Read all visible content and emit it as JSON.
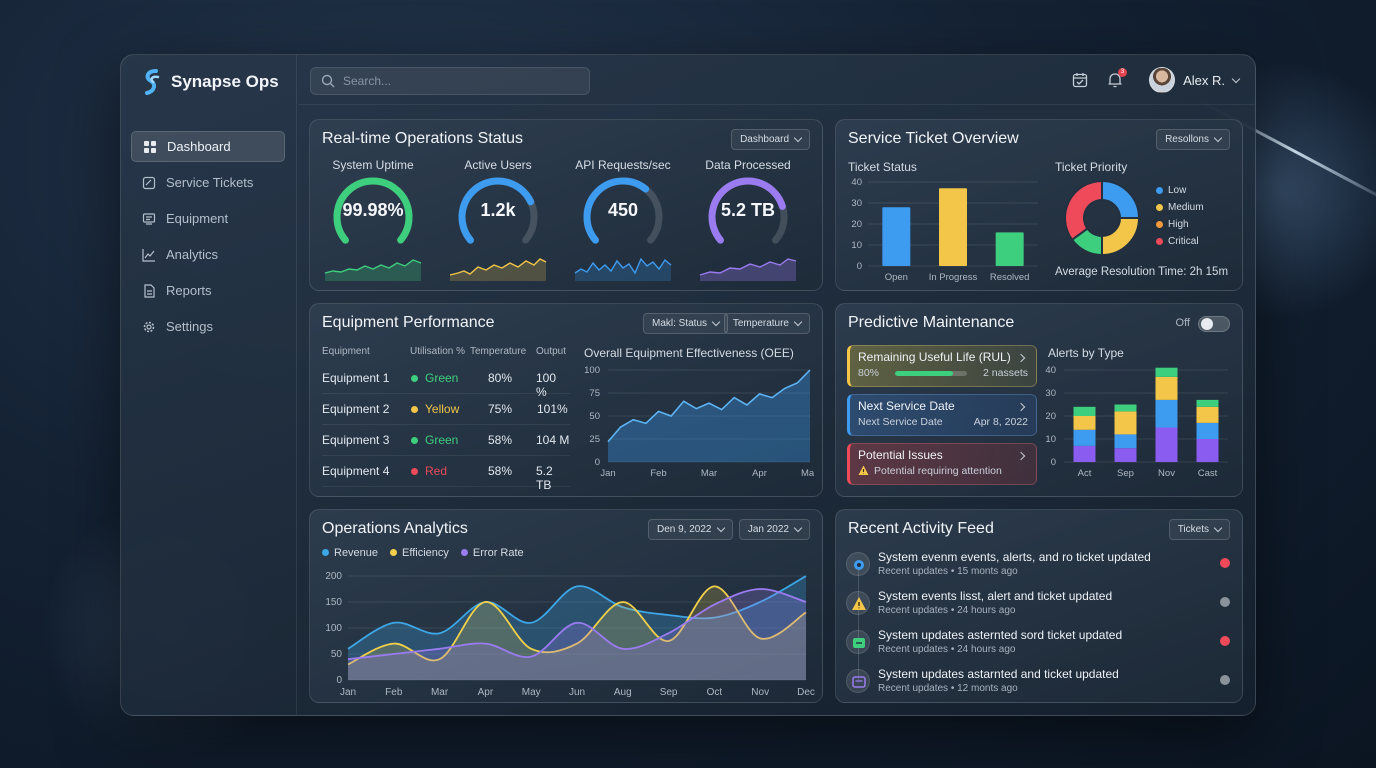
{
  "app": {
    "title": "Synapse Ops"
  },
  "search": {
    "placeholder": "Search..."
  },
  "topbar": {
    "notification_count": "3",
    "user_name": "Alex R."
  },
  "sidebar": {
    "items": [
      {
        "label": "Dashboard",
        "icon": "dashboard-icon",
        "active": true
      },
      {
        "label": "Service Tickets",
        "icon": "ticket-icon"
      },
      {
        "label": "Equipment",
        "icon": "equipment-icon"
      },
      {
        "label": "Analytics",
        "icon": "analytics-icon"
      },
      {
        "label": "Reports",
        "icon": "reports-icon"
      },
      {
        "label": "Settings",
        "icon": "gear-icon"
      }
    ]
  },
  "realtime": {
    "title": "Real-time Operations Status",
    "dropdown": "Dashboard",
    "gauges": [
      {
        "label": "System Uptime",
        "value": "99.98%",
        "color": "#3ecf7e",
        "fill": 0.9998
      },
      {
        "label": "Active Users",
        "value": "1.2k",
        "color": "#3d9bf0",
        "fill": 0.75
      },
      {
        "label": "API Requests/sec",
        "value": "450",
        "color": "#3d9bf0",
        "fill": 0.65
      },
      {
        "label": "Data Processed",
        "value": "5.2 TB",
        "color": "#9a7bf0",
        "fill": 0.78
      }
    ]
  },
  "tickets": {
    "title": "Service Ticket Overview",
    "dropdown": "Resollons",
    "status_title": "Ticket Status",
    "priority_title": "Ticket Priority",
    "resolution": "Average Resolution Time: 2h 15m",
    "priority_legend": [
      {
        "label": "Low",
        "color": "#3d9bf0"
      },
      {
        "label": "Medium",
        "color": "#f3c548"
      },
      {
        "label": "High",
        "color": "#f39a3a"
      },
      {
        "label": "Critical",
        "color": "#ee4a5a"
      }
    ]
  },
  "equipment": {
    "title": "Equipment Performance",
    "dropdown1": "Makl: Status",
    "dropdown2": "Temperature",
    "columns": [
      "Equipment",
      "Utilisation %",
      "Temperature",
      "Output"
    ],
    "rows": [
      {
        "name": "Equipment 1",
        "status": "Green",
        "status_color": "#3ecf7e",
        "temp": "80%",
        "output": "100 %"
      },
      {
        "name": "Equipment 2",
        "status": "Yellow",
        "status_color": "#f3c548",
        "temp": "75%",
        "output": "101%"
      },
      {
        "name": "Equipment 3",
        "status": "Green",
        "status_color": "#3ecf7e",
        "temp": "58%",
        "output": "104 M"
      },
      {
        "name": "Equipment 4",
        "status": "Red",
        "status_color": "#ee4a5a",
        "temp": "58%",
        "output": "5.2 TB"
      }
    ],
    "oee_title": "Overall Equipment Effectiveness (OEE)"
  },
  "maintenance": {
    "title": "Predictive Maintenance",
    "toggle_label": "Off",
    "rul": {
      "title": "Remaining Useful Life (RUL)",
      "percent": "80%",
      "assets": "2 nassets",
      "fill": 0.8
    },
    "service": {
      "title": "Next Service Date",
      "label": "Next Service Date",
      "date": "Apr 8, 2022"
    },
    "issues": {
      "title": "Potential Issues",
      "text": "Potential requiring attention"
    },
    "alerts_title": "Alerts by Type"
  },
  "analytics": {
    "title": "Operations Analytics",
    "date_from": "Den 9, 2022",
    "date_to": "Jan 2022",
    "legend": [
      {
        "label": "Revenue",
        "color": "#3da6e6"
      },
      {
        "label": "Efficiency",
        "color": "#f3d04a"
      },
      {
        "label": "Error Rate",
        "color": "#9a7bf0"
      }
    ]
  },
  "feed": {
    "title": "Recent Activity Feed",
    "dropdown": "Tickets",
    "items": [
      {
        "title": "System evenm events, alerts, and ro ticket updated",
        "sub": "Recent updates • 15 monts ago",
        "icon": "gear-icon",
        "dot": "#ee4a5a"
      },
      {
        "title": "System events lisst, alert and ticket updated",
        "sub": "Recent updates • 24 hours ago",
        "icon": "warning-icon",
        "dot": "#8a929c"
      },
      {
        "title": "System updates asternted sord ticket updated",
        "sub": "Recent updates • 24 hours ago",
        "icon": "ticket-icon",
        "dot": "#ee4a5a"
      },
      {
        "title": "System updates astarnted and ticket updated",
        "sub": "Recent updates • 12 monts ago",
        "icon": "message-icon",
        "dot": "#8a929c"
      }
    ]
  },
  "chart_data": [
    {
      "type": "bar",
      "title": "Ticket Status",
      "categories": [
        "Open",
        "In Progress",
        "Resolved"
      ],
      "values": [
        28,
        37,
        16
      ],
      "colors": [
        "#3d9bf0",
        "#f3c548",
        "#3ecf7e"
      ],
      "ylim": [
        0,
        40
      ],
      "yticks": [
        0,
        10,
        20,
        30,
        40
      ]
    },
    {
      "type": "pie",
      "title": "Ticket Priority",
      "categories": [
        "Low",
        "Medium",
        "High",
        "Critical"
      ],
      "values": [
        25,
        25,
        15,
        35
      ],
      "colors": [
        "#3d9bf0",
        "#f3c548",
        "#3ecf7e",
        "#ee4a5a"
      ]
    },
    {
      "type": "area",
      "title": "Overall Equipment Effectiveness (OEE)",
      "categories": [
        "Jan",
        "Feb",
        "Mar",
        "Apr",
        "May"
      ],
      "x": [
        0,
        0.25,
        0.5,
        0.75,
        1,
        1.25,
        1.5,
        1.75,
        2,
        2.25,
        2.5,
        2.75,
        3,
        3.25,
        3.5,
        3.75,
        4
      ],
      "values": [
        22,
        38,
        46,
        42,
        55,
        50,
        66,
        58,
        64,
        57,
        70,
        62,
        74,
        70,
        80,
        86,
        100
      ],
      "ylim": [
        0,
        100
      ],
      "yticks": [
        0,
        25,
        50,
        75,
        100
      ]
    },
    {
      "type": "bar",
      "title": "Alerts by Type",
      "stacked": true,
      "categories": [
        "Act",
        "Sep",
        "Nov",
        "Cast"
      ],
      "series": [
        {
          "values": [
            7,
            6,
            15,
            10
          ],
          "color": "#8a5cf0"
        },
        {
          "values": [
            7,
            6,
            12,
            7
          ],
          "color": "#3d9bf0"
        },
        {
          "values": [
            6,
            10,
            10,
            7
          ],
          "color": "#f3c548"
        },
        {
          "values": [
            4,
            3,
            4,
            3
          ],
          "color": "#3ecf7e"
        }
      ],
      "ylim": [
        0,
        40
      ],
      "yticks": [
        0,
        10,
        20,
        30,
        40
      ]
    },
    {
      "type": "area",
      "title": "Operations Analytics",
      "categories": [
        "Jan",
        "Feb",
        "Mar",
        "Apr",
        "May",
        "Jun",
        "Aug",
        "Sep",
        "Oct",
        "Nov",
        "Dec"
      ],
      "series": [
        {
          "name": "Revenue",
          "values": [
            60,
            110,
            90,
            150,
            110,
            180,
            140,
            125,
            120,
            150,
            200
          ],
          "color": "#3da6e6"
        },
        {
          "name": "Efficiency",
          "values": [
            30,
            70,
            40,
            150,
            60,
            70,
            150,
            75,
            180,
            80,
            130
          ],
          "color": "#f3d04a"
        },
        {
          "name": "Error Rate",
          "values": [
            40,
            50,
            60,
            70,
            45,
            110,
            60,
            90,
            145,
            175,
            150
          ],
          "color": "#9a7bf0"
        }
      ],
      "ylim": [
        0,
        200
      ],
      "yticks": [
        0,
        50,
        100,
        150,
        200
      ]
    }
  ]
}
